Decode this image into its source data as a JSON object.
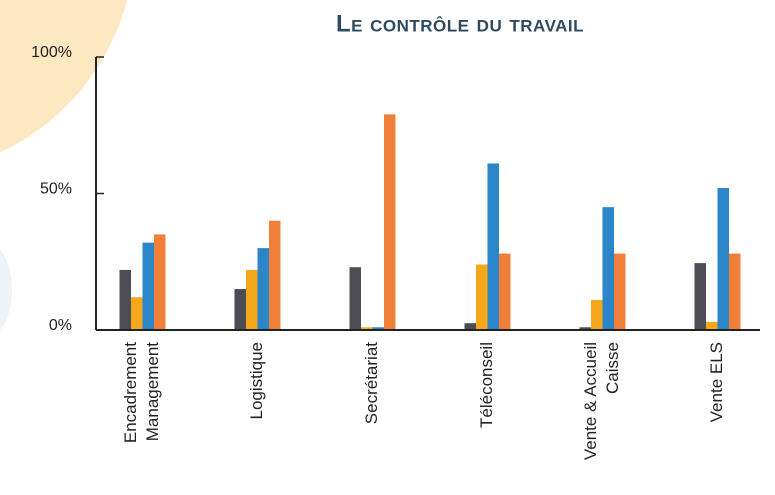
{
  "chart_data": {
    "type": "bar",
    "title": "Le contrôle du travail",
    "categories": [
      [
        "Encadrement",
        "Management"
      ],
      [
        "Logistique"
      ],
      [
        "Secrétariat"
      ],
      [
        "Téléconseil"
      ],
      [
        "Vente & Accueil",
        "Caisse"
      ],
      [
        "Vente ELS"
      ]
    ],
    "series": [
      {
        "color": "#4d4d55",
        "values": [
          22,
          15,
          23,
          2.5,
          1,
          24.5
        ]
      },
      {
        "color": "#f5a81c",
        "values": [
          12,
          22,
          1,
          24,
          11,
          3
        ]
      },
      {
        "color": "#2a86c8",
        "values": [
          32,
          30,
          1,
          61,
          45,
          52
        ]
      },
      {
        "color": "#f08039",
        "values": [
          35,
          40,
          79,
          28,
          28,
          28
        ]
      }
    ],
    "ylim": [
      0,
      100
    ],
    "yticks": [
      {
        "value": 0,
        "label": "0%"
      },
      {
        "value": 50,
        "label": "50%"
      },
      {
        "value": 100,
        "label": "100%"
      }
    ]
  }
}
